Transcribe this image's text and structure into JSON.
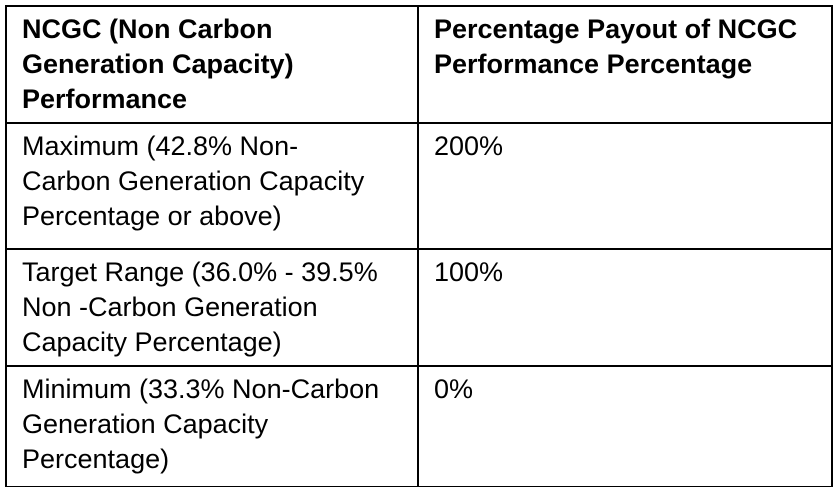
{
  "table": {
    "columns": [
      {
        "header": "NCGC (Non Carbon Generation Capacity) Performance"
      },
      {
        "header": "Percentage Payout of NCGC Performance Percentage"
      }
    ],
    "rows": [
      {
        "performance": "Maximum (42.8% Non-Carbon Generation Capacity Percentage or above)",
        "payout": "200%"
      },
      {
        "performance": "Target Range (36.0% - 39.5% Non -Carbon Generation Capacity Percentage)",
        "payout": "100%"
      },
      {
        "performance": "Minimum (33.3% Non-Carbon Generation Capacity Percentage)",
        "payout": "0%"
      }
    ],
    "colors": {
      "border": "#000000",
      "text": "#000000",
      "background": "#ffffff"
    }
  }
}
